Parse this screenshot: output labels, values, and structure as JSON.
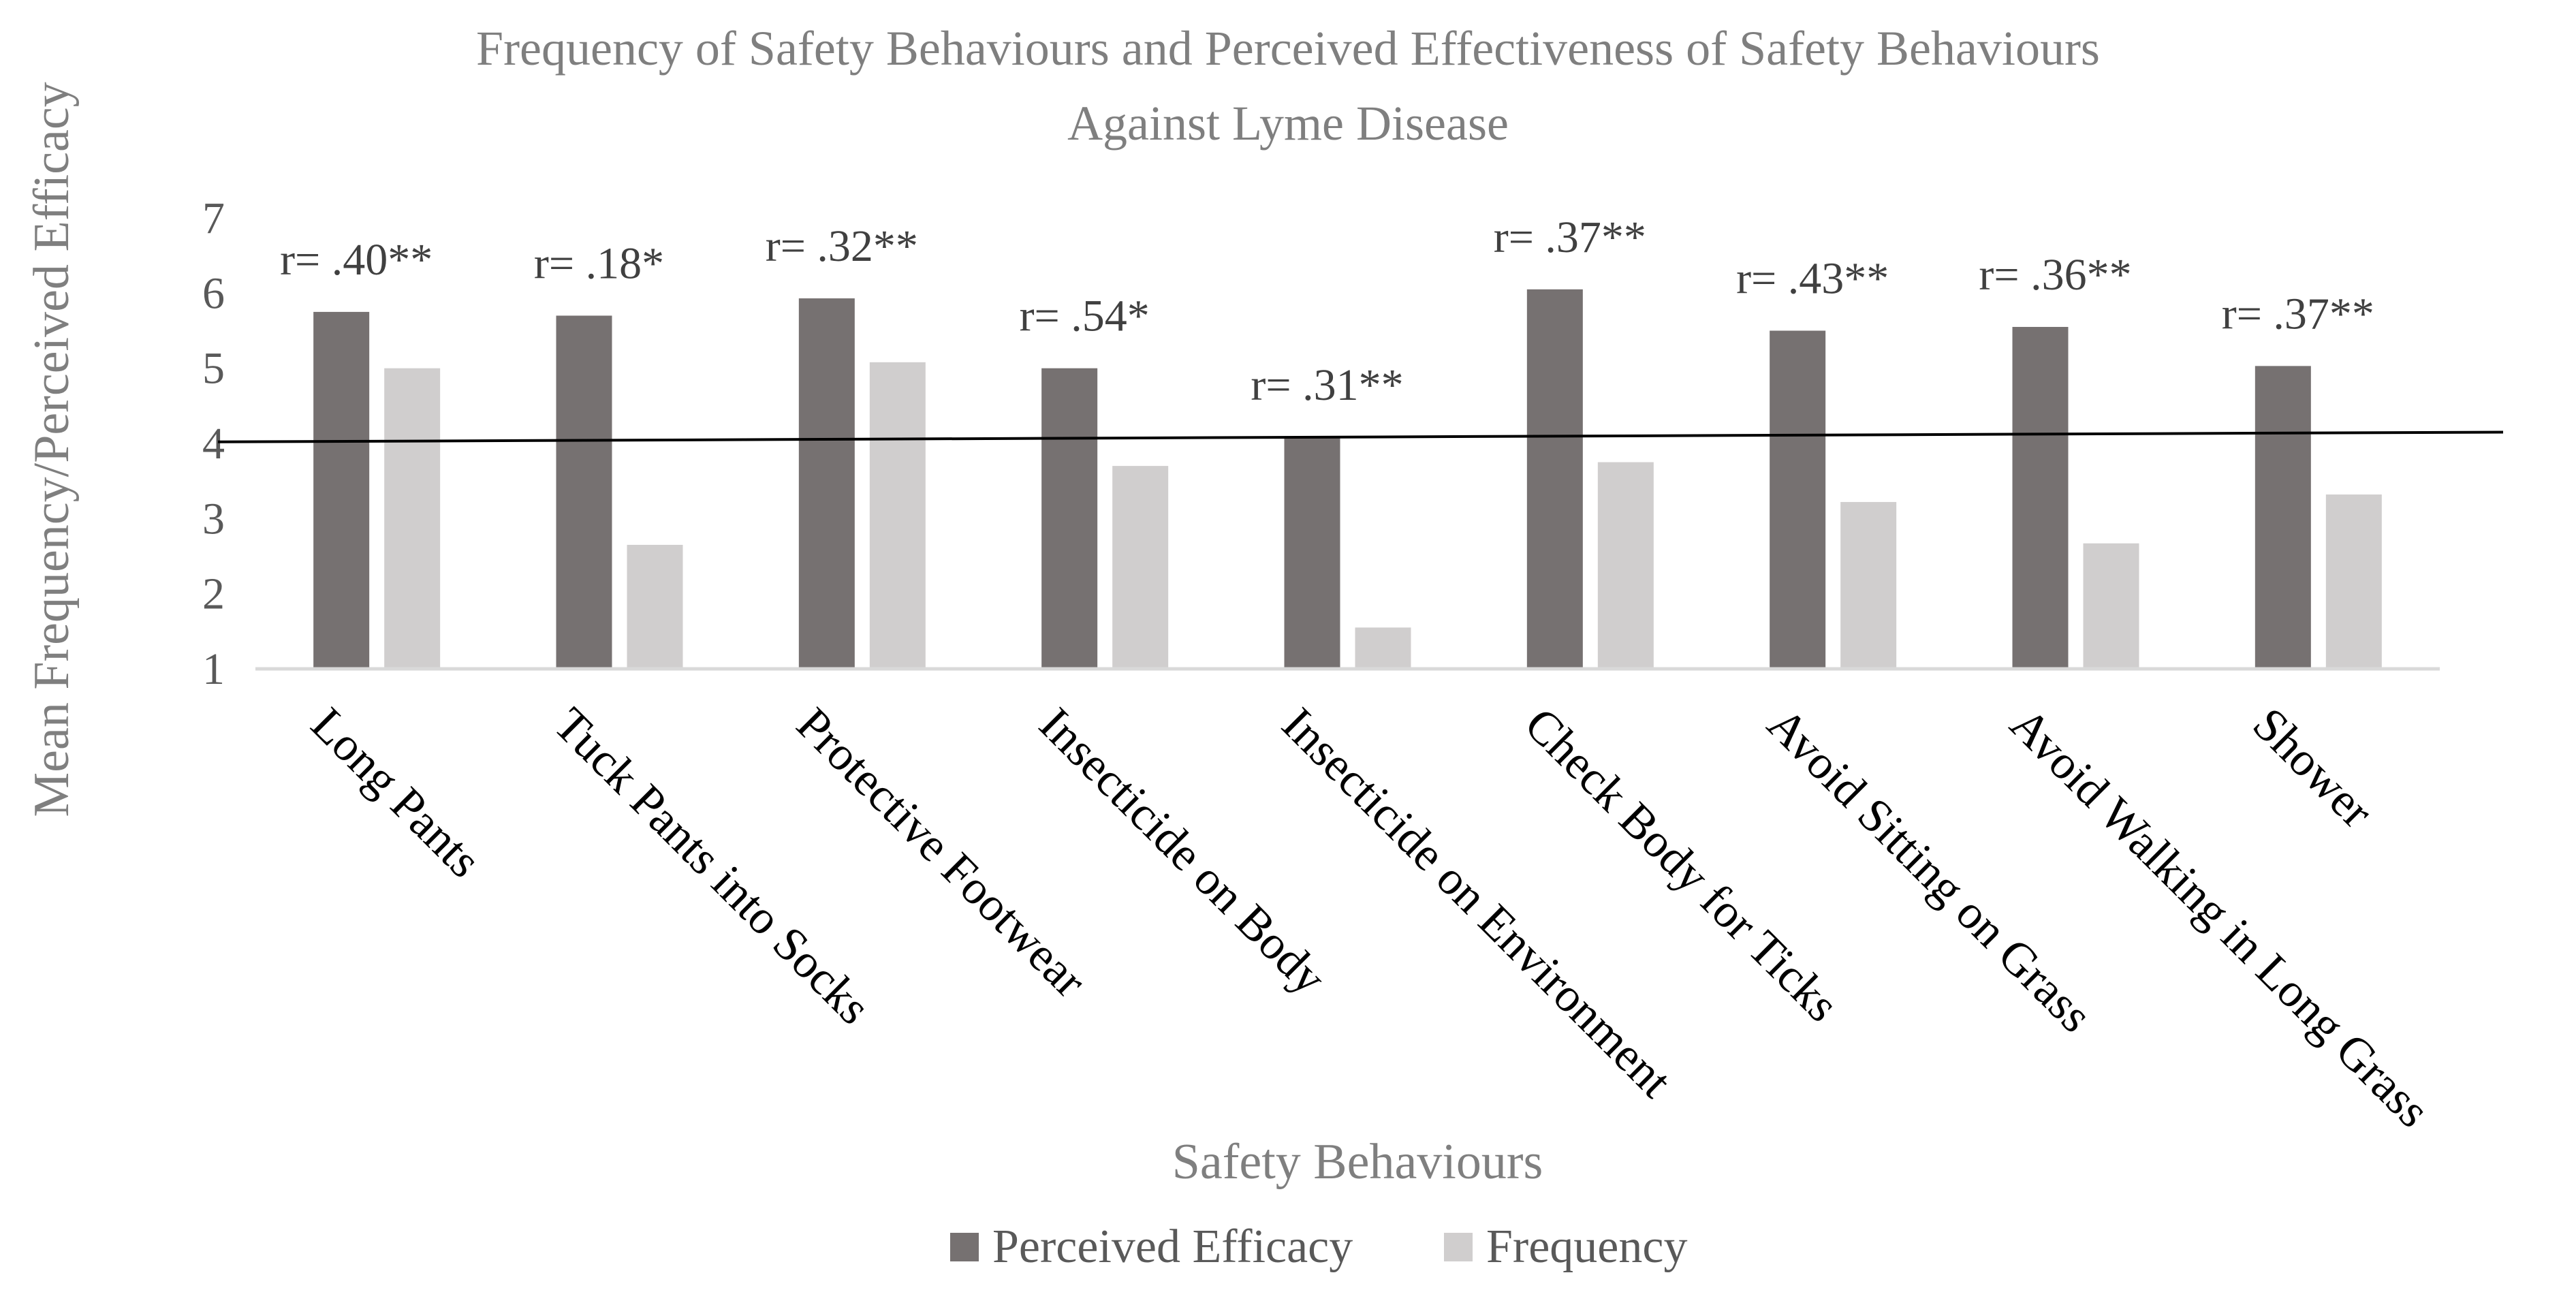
{
  "chart_data": {
    "type": "bar",
    "title": "Frequency of Safety Behaviours and Perceived Effectiveness of Safety Behaviours",
    "subtitle": "Against Lyme Disease",
    "xlabel": "Safety Behaviours",
    "ylabel": "Mean Frequency/Perceived Efficacy",
    "ylim": [
      1,
      7
    ],
    "yticks": [
      "1",
      "2",
      "3",
      "4",
      "5",
      "6",
      "7"
    ],
    "categories": [
      "Long Pants",
      "Tuck Pants into Socks",
      "Protective Footwear",
      "Insecticide on Body",
      "Insecticide on Environment",
      "Check Body for Ticks",
      "Avoid Sitting on Grass",
      "Avoid Walking in Long Grass",
      "Shower"
    ],
    "series": [
      {
        "name": "Perceived Efficacy",
        "color": "#767171",
        "values": [
          5.75,
          5.7,
          5.93,
          5.0,
          4.08,
          6.05,
          5.5,
          5.55,
          5.03
        ]
      },
      {
        "name": "Frequency",
        "color": "#d0cece",
        "values": [
          5.0,
          2.65,
          5.08,
          3.7,
          1.55,
          3.75,
          3.22,
          2.67,
          3.32
        ]
      }
    ],
    "annotations": [
      "r= .40**",
      "r= .18*",
      "r= .32**",
      "r= .54*",
      "r= .31**",
      "r= .37**",
      "r= .43**",
      "r= .36**",
      "r= .37**"
    ],
    "reference_line": {
      "start": 4.02,
      "end": 4.15,
      "color": "#000000"
    },
    "legend_position": "bottom",
    "grid": false
  }
}
